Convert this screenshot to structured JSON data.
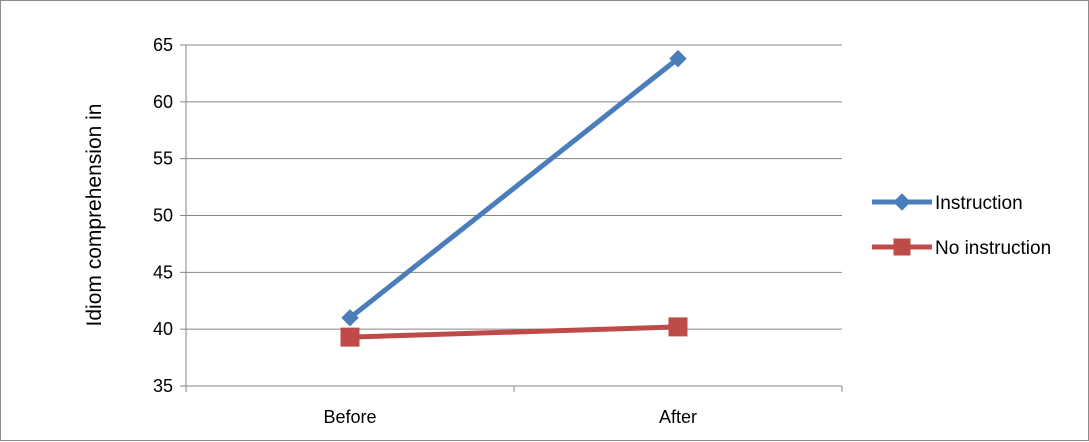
{
  "chart_data": {
    "type": "line",
    "title": "",
    "xlabel": "",
    "ylabel": "Idiom comprehension in",
    "categories": [
      "Before",
      "After"
    ],
    "ylim": [
      35,
      65
    ],
    "yticks": [
      35,
      40,
      45,
      50,
      55,
      60,
      65
    ],
    "grid": true,
    "legend": "right",
    "series": [
      {
        "name": "Instruction",
        "values": [
          41,
          63.8
        ],
        "color": "#4a7ebb",
        "marker": "diamond"
      },
      {
        "name": "No instruction",
        "values": [
          39.3,
          40.2
        ],
        "color": "#be4b48",
        "marker": "square"
      }
    ]
  }
}
